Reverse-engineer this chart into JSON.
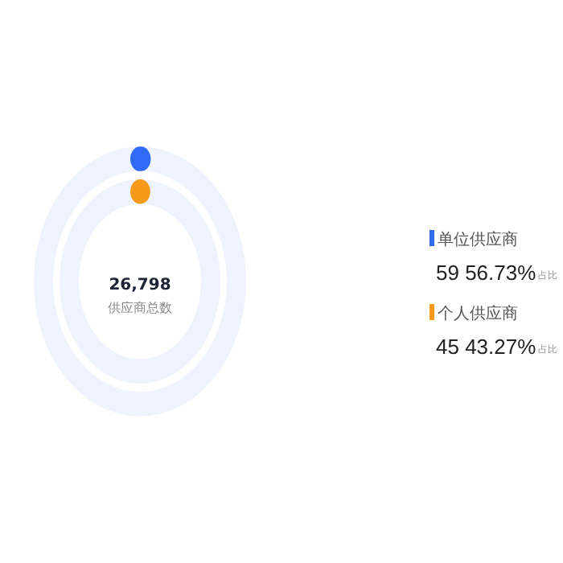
{
  "chart_data": {
    "type": "other",
    "categories": [
      "单位供应商",
      "个人供应商"
    ],
    "values": [
      59,
      45
    ],
    "colors": [
      "#2f6bf5",
      "#f79a1b"
    ],
    "value_labels": [
      "59 56.73%",
      "45 43.27%"
    ],
    "annotations": [
      "26,798",
      "供应商总数",
      "占比"
    ]
  }
}
